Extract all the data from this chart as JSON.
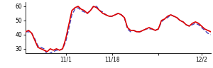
{
  "red_y": [
    42,
    43,
    41,
    36,
    31,
    30,
    29,
    28,
    30,
    29,
    30,
    29,
    30,
    37,
    47,
    57,
    59,
    60,
    58,
    57,
    55,
    57,
    60,
    59,
    57,
    55,
    54,
    53,
    53,
    54,
    55,
    54,
    52,
    45,
    43,
    43,
    42,
    42,
    43,
    44,
    45,
    44,
    43,
    44,
    50,
    51,
    53,
    54,
    53,
    52,
    50,
    49,
    47,
    46,
    48,
    49,
    48,
    46,
    44,
    43,
    42
  ],
  "blue_y": [
    42,
    42,
    41,
    37,
    32,
    31,
    30,
    26,
    27,
    28,
    29,
    29,
    30,
    35,
    44,
    54,
    58,
    59,
    57,
    56,
    55,
    57,
    60,
    60,
    57,
    56,
    54,
    53,
    53,
    54,
    55,
    54,
    52,
    44,
    42,
    43,
    42,
    42,
    43,
    44,
    44,
    44,
    43,
    44,
    49,
    51,
    52,
    54,
    53,
    52,
    50,
    49,
    47,
    46,
    47,
    48,
    47,
    45,
    43,
    41,
    40
  ],
  "xlim": [
    0,
    60
  ],
  "ylim": [
    27,
    63
  ],
  "yticks": [
    30,
    40,
    50,
    60
  ],
  "xtick_positions": [
    13,
    28,
    43,
    57
  ],
  "xtick_labels": [
    "11/1",
    "11/18",
    "",
    "12/2"
  ],
  "red_color": "#dd0000",
  "blue_color": "#4444bb",
  "bg_color": "#ffffff",
  "red_linewidth": 1.2,
  "blue_linewidth": 1.0
}
